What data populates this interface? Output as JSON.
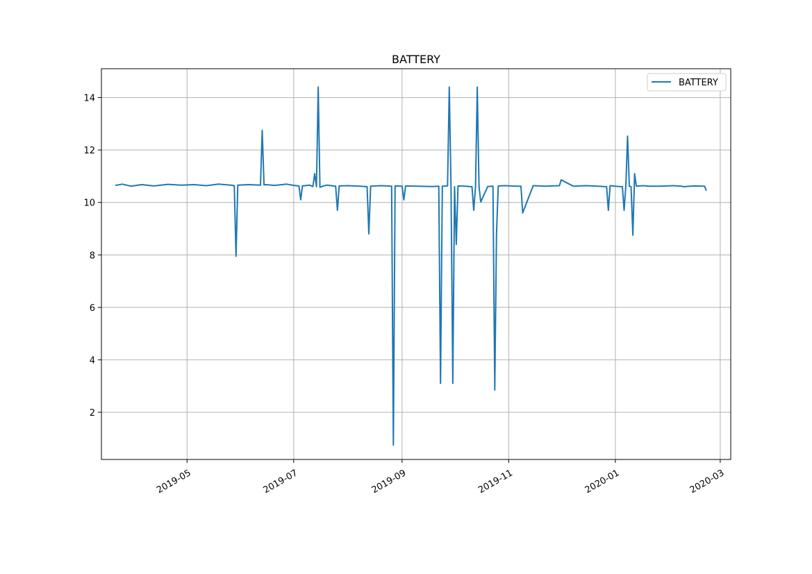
{
  "chart_data": {
    "type": "line",
    "title": "BATTERY",
    "xlabel": "",
    "ylabel": "",
    "x_type": "date",
    "xlim": [
      "2019-03-13",
      "2020-03-07"
    ],
    "ylim": [
      0.2,
      15.1
    ],
    "x_ticks": [
      {
        "date": "2019-05-01",
        "label": "2019-05"
      },
      {
        "date": "2019-07-01",
        "label": "2019-07"
      },
      {
        "date": "2019-09-01",
        "label": "2019-09"
      },
      {
        "date": "2019-11-01",
        "label": "2019-11"
      },
      {
        "date": "2020-01-01",
        "label": "2020-01"
      },
      {
        "date": "2020-03-01",
        "label": "2020-03"
      }
    ],
    "y_ticks": [
      2,
      4,
      6,
      8,
      10,
      12,
      14
    ],
    "y_tick_labels": [
      "2",
      "4",
      "6",
      "8",
      "10",
      "12",
      "14"
    ],
    "grid": true,
    "legend": {
      "position": "top-right",
      "entries": [
        "BATTERY"
      ]
    },
    "colors": {
      "series": "#1f77b4",
      "grid": "#b0b0b0",
      "axes": "#000000"
    },
    "series": [
      {
        "name": "BATTERY",
        "x": [
          "2019-03-21",
          "2019-03-25",
          "2019-03-30",
          "2019-04-05",
          "2019-04-12",
          "2019-04-20",
          "2019-04-28",
          "2019-05-05",
          "2019-05-12",
          "2019-05-19",
          "2019-05-26",
          "2019-05-28",
          "2019-05-29",
          "2019-05-30",
          "2019-06-05",
          "2019-06-12",
          "2019-06-13",
          "2019-06-14",
          "2019-06-15",
          "2019-06-20",
          "2019-06-27",
          "2019-07-01",
          "2019-07-04",
          "2019-07-05",
          "2019-07-06",
          "2019-07-10",
          "2019-07-12",
          "2019-07-13",
          "2019-07-14",
          "2019-07-15",
          "2019-07-16",
          "2019-07-18",
          "2019-07-20",
          "2019-07-25",
          "2019-07-26",
          "2019-07-27",
          "2019-08-01",
          "2019-08-08",
          "2019-08-12",
          "2019-08-13",
          "2019-08-14",
          "2019-08-20",
          "2019-08-26",
          "2019-08-27",
          "2019-08-28",
          "2019-09-01",
          "2019-09-02",
          "2019-09-03",
          "2019-09-10",
          "2019-09-18",
          "2019-09-22",
          "2019-09-23",
          "2019-09-24",
          "2019-09-27",
          "2019-09-28",
          "2019-09-29",
          "2019-09-30",
          "2019-10-01",
          "2019-10-02",
          "2019-10-03",
          "2019-10-07",
          "2019-10-11",
          "2019-10-12",
          "2019-10-13",
          "2019-10-14",
          "2019-10-15",
          "2019-10-16",
          "2019-10-20",
          "2019-10-23",
          "2019-10-24",
          "2019-10-25",
          "2019-10-26",
          "2019-10-30",
          "2019-11-05",
          "2019-11-08",
          "2019-11-09",
          "2019-11-15",
          "2019-11-22",
          "2019-11-30",
          "2019-12-01",
          "2019-12-08",
          "2019-12-15",
          "2019-12-22",
          "2019-12-27",
          "2019-12-28",
          "2019-12-29",
          "2020-01-01",
          "2020-01-05",
          "2020-01-06",
          "2020-01-07",
          "2020-01-08",
          "2020-01-09",
          "2020-01-10",
          "2020-01-11",
          "2020-01-12",
          "2020-01-13",
          "2020-01-17",
          "2020-01-20",
          "2020-01-27",
          "2020-02-03",
          "2020-02-08",
          "2020-02-09",
          "2020-02-15",
          "2020-02-21",
          "2020-02-22"
        ],
        "values": [
          10.65,
          10.7,
          10.62,
          10.68,
          10.63,
          10.69,
          10.66,
          10.68,
          10.64,
          10.7,
          10.66,
          10.64,
          7.95,
          10.66,
          10.68,
          10.66,
          12.75,
          10.67,
          10.68,
          10.65,
          10.7,
          10.65,
          10.63,
          10.1,
          10.63,
          10.66,
          10.61,
          11.1,
          10.6,
          14.4,
          10.58,
          10.63,
          10.66,
          10.62,
          9.7,
          10.63,
          10.64,
          10.62,
          10.6,
          8.8,
          10.62,
          10.64,
          10.62,
          0.75,
          10.63,
          10.62,
          10.1,
          10.63,
          10.62,
          10.61,
          10.62,
          3.1,
          10.62,
          10.63,
          14.4,
          10.62,
          3.1,
          10.6,
          8.4,
          10.63,
          10.62,
          10.6,
          9.7,
          10.62,
          14.4,
          10.62,
          10.02,
          10.61,
          10.62,
          2.85,
          8.8,
          10.63,
          10.64,
          10.62,
          10.62,
          9.6,
          10.64,
          10.62,
          10.64,
          10.86,
          10.62,
          10.64,
          10.62,
          10.6,
          9.7,
          10.64,
          10.62,
          10.6,
          9.7,
          10.64,
          12.53,
          10.62,
          10.6,
          8.75,
          11.1,
          10.62,
          10.64,
          10.62,
          10.62,
          10.64,
          10.62,
          10.6,
          10.63,
          10.62,
          10.45
        ]
      }
    ]
  }
}
